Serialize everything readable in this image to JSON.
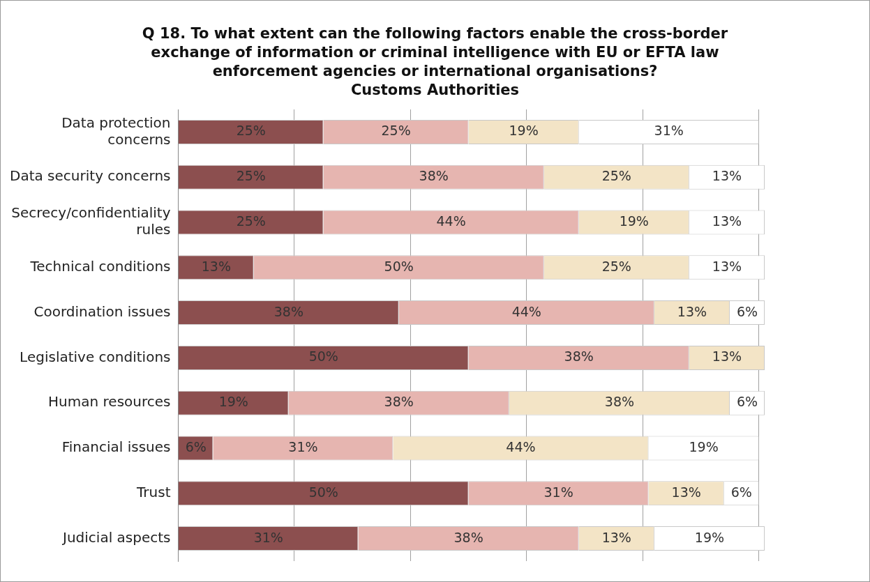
{
  "chart_data": {
    "type": "bar",
    "orientation": "horizontal",
    "stacked": true,
    "title": "Q 18. To what extent can the following factors enable the cross-border exchange of information or criminal intelligence with EU or EFTA law enforcement agencies or international organisations?",
    "subtitle": "Customs Authorities",
    "categories": [
      "Data protection concerns",
      "Data security concerns",
      "Secrecy/confidentiality rules",
      "Technical conditions",
      "Coordination issues",
      "Legislative conditions",
      "Human resources",
      "Financial issues",
      "Trust",
      "Judicial aspects"
    ],
    "series": [
      {
        "color": "#8c4f4f",
        "values": [
          25,
          25,
          25,
          13,
          38,
          50,
          19,
          6,
          50,
          31
        ],
        "value_labels": [
          "25%",
          "25%",
          "25%",
          "13%",
          "38%",
          "50%",
          "19%",
          "6%",
          "50%",
          "31%"
        ]
      },
      {
        "color": "#e6b5b0",
        "values": [
          25,
          38,
          44,
          50,
          44,
          38,
          38,
          31,
          31,
          38
        ],
        "value_labels": [
          "25%",
          "38%",
          "44%",
          "50%",
          "44%",
          "38%",
          "38%",
          "31%",
          "31%",
          "38%"
        ]
      },
      {
        "color": "#f3e4c6",
        "values": [
          19,
          25,
          19,
          25,
          13,
          13,
          38,
          44,
          13,
          13
        ],
        "value_labels": [
          "19%",
          "25%",
          "19%",
          "25%",
          "13%",
          "13%",
          "38%",
          "44%",
          "13%",
          "13%"
        ]
      },
      {
        "color": "#ffffff",
        "values": [
          31,
          13,
          13,
          13,
          6,
          null,
          6,
          19,
          6,
          19
        ],
        "value_labels": [
          "31%",
          "13%",
          "13%",
          "13%",
          "6%",
          null,
          "6%",
          "19%",
          "6%",
          "19%"
        ]
      }
    ],
    "xlim": [
      0,
      101
    ],
    "xticks": [
      0,
      20,
      40,
      60,
      80,
      100
    ],
    "tick_labels": "y",
    "grid": "x",
    "legend": false
  }
}
